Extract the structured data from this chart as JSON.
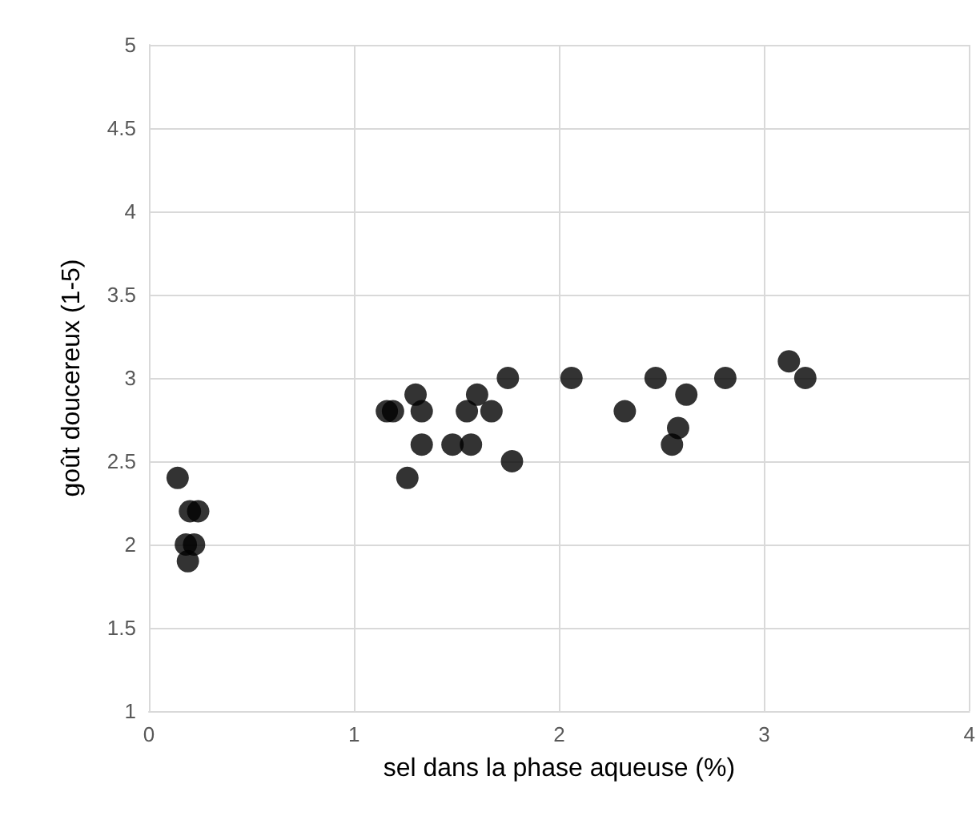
{
  "chart_data": {
    "type": "scatter",
    "xlabel": "sel dans la phase aqueuse (%)",
    "ylabel": "goût doucereux (1-5)",
    "x": [
      0.14,
      0.2,
      0.24,
      0.18,
      0.22,
      0.19,
      1.16,
      1.19,
      1.3,
      1.33,
      1.55,
      1.6,
      1.67,
      1.33,
      1.48,
      1.57,
      1.77,
      1.26,
      1.75,
      2.06,
      2.32,
      2.47,
      2.81,
      2.62,
      2.58,
      2.55,
      3.12,
      3.2
    ],
    "values": [
      2.4,
      2.2,
      2.2,
      2.0,
      2.0,
      1.9,
      2.8,
      2.8,
      2.9,
      2.8,
      2.8,
      2.9,
      2.8,
      2.6,
      2.6,
      2.6,
      2.5,
      2.4,
      3.0,
      3.0,
      2.8,
      3.0,
      3.0,
      2.9,
      2.7,
      2.6,
      3.1,
      3.0
    ],
    "color": "#000000",
    "marker": "circle",
    "grid": true,
    "xlim": [
      0,
      4
    ],
    "xticks": [
      0,
      1,
      2,
      3,
      4
    ],
    "ylim": [
      1,
      5
    ],
    "yticks": [
      1,
      1.5,
      2,
      2.5,
      3,
      3.5,
      4,
      4.5,
      5
    ]
  }
}
